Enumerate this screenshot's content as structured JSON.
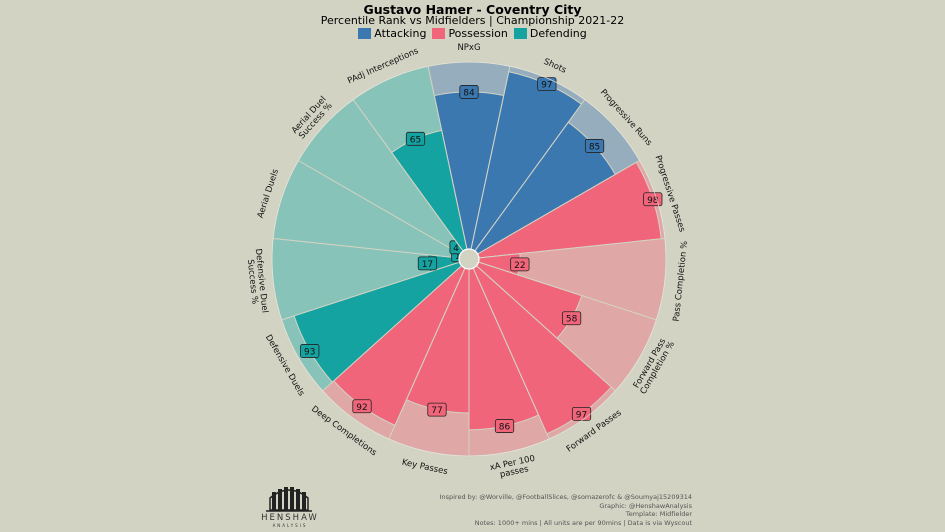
{
  "header": {
    "title": "Gustavo Hamer - Coventry City",
    "subtitle": "Percentile Rank vs Midfielders | Championship 2021-22"
  },
  "legend": [
    {
      "label": "Attacking",
      "color": "#3c78b0"
    },
    {
      "label": "Possession",
      "color": "#f0657a"
    },
    {
      "label": "Defending",
      "color": "#14a3a0"
    }
  ],
  "chart_data": {
    "type": "pizza",
    "title": "Gustavo Hamer - Coventry City",
    "range": [
      0,
      100
    ],
    "colors": {
      "Attacking": {
        "bar": "#3c78b0",
        "bg": "#95adbd"
      },
      "Possession": {
        "bar": "#f0657a",
        "bg": "#dfa7a6"
      },
      "Defending": {
        "bar": "#14a3a0",
        "bg": "#87c3b8"
      }
    },
    "slices": [
      {
        "label": "NPxG",
        "value": 84,
        "category": "Attacking"
      },
      {
        "label": "Shots",
        "value": 97,
        "category": "Attacking"
      },
      {
        "label": "Progressive Runs",
        "value": 85,
        "category": "Attacking"
      },
      {
        "label": "Progressive Passes",
        "value": 98,
        "category": "Possession"
      },
      {
        "label": "Pass Completion %",
        "value": 22,
        "category": "Possession"
      },
      {
        "label": "Forward Pass Completion %",
        "value": 58,
        "category": "Possession"
      },
      {
        "label": "Forward Passes",
        "value": 97,
        "category": "Possession"
      },
      {
        "label": "xA Per 100 passes",
        "value": 86,
        "category": "Possession"
      },
      {
        "label": "Key Passes",
        "value": 77,
        "category": "Possession"
      },
      {
        "label": "Deep Completions",
        "value": 92,
        "category": "Possession"
      },
      {
        "label": "Defensive Duels",
        "value": 93,
        "category": "Defending"
      },
      {
        "label": "Defensive Duel Success %",
        "value": 17,
        "category": "Defending"
      },
      {
        "label": "Aerial Duels",
        "value": 1,
        "category": "Defending"
      },
      {
        "label": "Aerial Duel Success %",
        "value": 4,
        "category": "Defending"
      },
      {
        "label": "PAdj Interceptions",
        "value": 65,
        "category": "Defending"
      }
    ]
  },
  "footer": {
    "line1": "Inspired by: @Worville, @FootballSlices, @somazerofc & @Soumyaj15209314",
    "line2": "Graphic: @HenshawAnalysis",
    "line3": "Template: Midfielder",
    "line4": "Notes: 1000+ mins | All units are per 90mins | Data is via Wyscout"
  },
  "logo": {
    "name": "HENSHAW",
    "sub": "ANALYSIS"
  }
}
